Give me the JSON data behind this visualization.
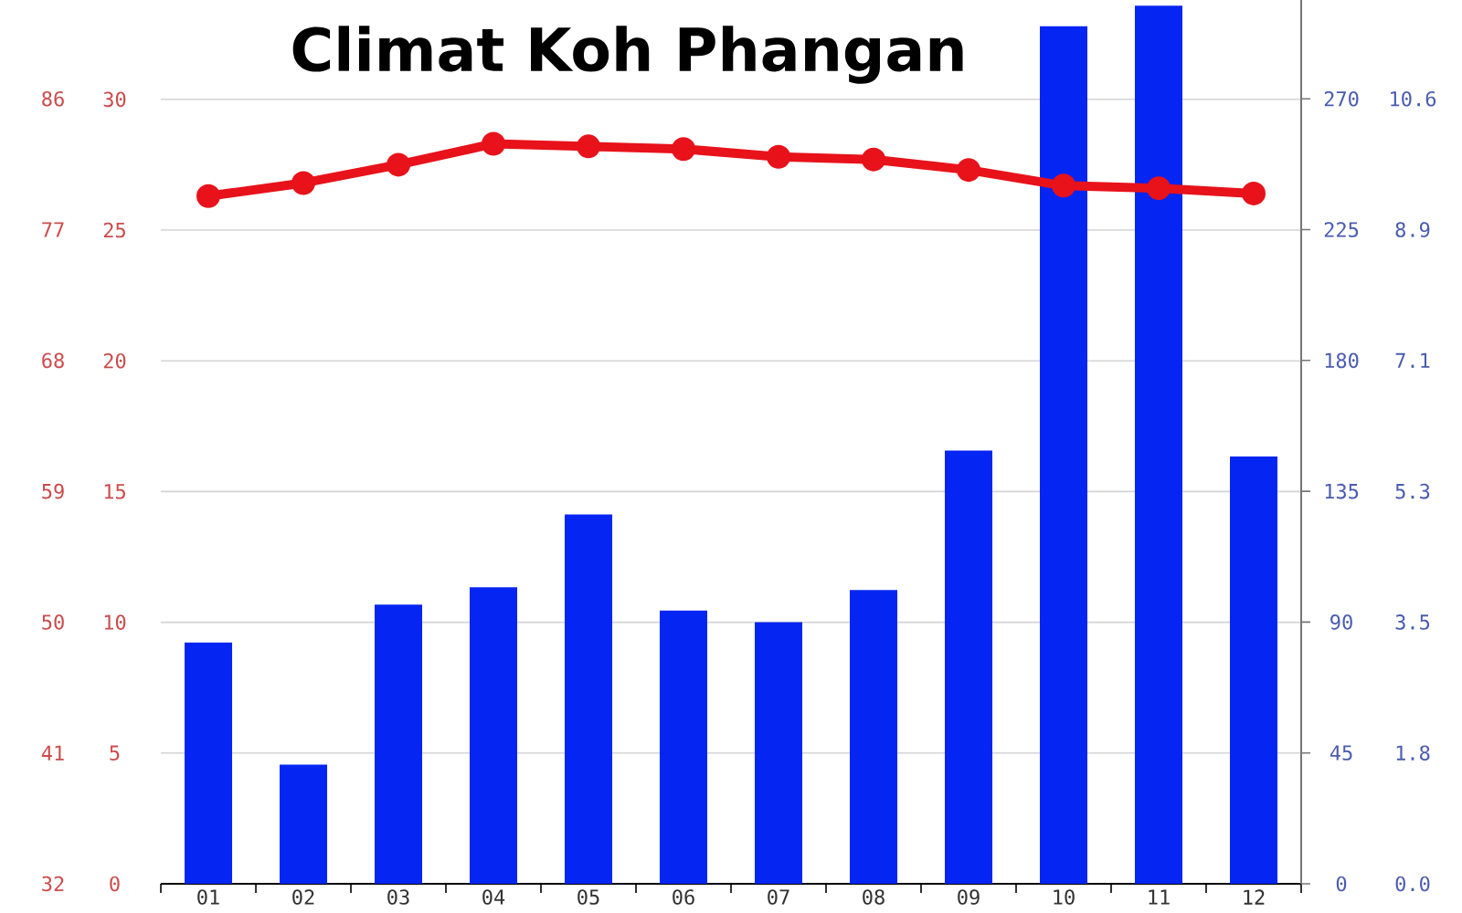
{
  "chart_data": {
    "type": "bar",
    "title": "Climat Koh Phangan",
    "categories": [
      "01",
      "02",
      "03",
      "04",
      "05",
      "06",
      "07",
      "08",
      "09",
      "10",
      "11",
      "12"
    ],
    "series": [
      {
        "color": "#0525f2",
        "axis": "y2",
        "values": [
          83,
          41,
          96,
          102,
          127,
          94,
          90,
          101,
          149,
          295,
          302,
          147
        ]
      },
      {
        "type": "line",
        "color": "#e8121a",
        "axis": "y",
        "values": [
          26.3,
          26.8,
          27.5,
          28.3,
          28.2,
          28.1,
          27.8,
          27.7,
          27.3,
          26.7,
          26.6,
          26.4
        ]
      }
    ],
    "ylim": [
      0,
      33.8
    ],
    "yticks": [
      0,
      5,
      10,
      15,
      20,
      25,
      30
    ],
    "y2lim": [
      0,
      304
    ],
    "y2ticks": [
      0,
      45,
      90,
      135,
      180,
      225,
      270
    ],
    "y3lim": [
      32,
      92.8
    ],
    "y3ticks": [
      32,
      41,
      50,
      59,
      68,
      77,
      86
    ],
    "annotations": [
      "0.0",
      "1.8",
      "3.5",
      "5.3",
      "7.1",
      "8.9",
      "10.6"
    ],
    "grid": "y",
    "marker": "circle",
    "line_style": "solid"
  }
}
